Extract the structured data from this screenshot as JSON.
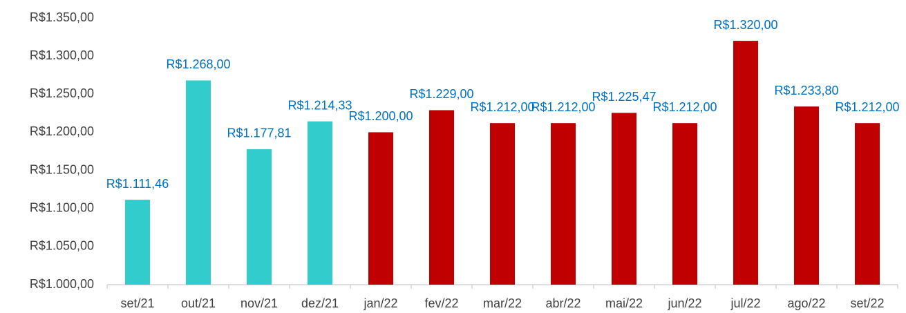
{
  "chart_data": {
    "type": "bar",
    "categories": [
      "set/21",
      "out/21",
      "nov/21",
      "dez/21",
      "jan/22",
      "fev/22",
      "mar/22",
      "abr/22",
      "mai/22",
      "jun/22",
      "jul/22",
      "ago/22",
      "set/22"
    ],
    "values": [
      1111.46,
      1268,
      1177.81,
      1214.33,
      1200,
      1229,
      1212,
      1212,
      1225.47,
      1212,
      1320,
      1233.8,
      1212
    ],
    "value_labels": [
      "R$1.111,46",
      "R$1.268,00",
      "R$1.177,81",
      "R$1.214,33",
      "R$1.200,00",
      "R$1.229,00",
      "R$1.212,00",
      "R$1.212,00",
      "R$1.225,47",
      "R$1.212,00",
      "R$1.320,00",
      "R$1.233,80",
      "R$1.212,00"
    ],
    "colors": [
      "#33cccc",
      "#33cccc",
      "#33cccc",
      "#33cccc",
      "#c00000",
      "#c00000",
      "#c00000",
      "#c00000",
      "#c00000",
      "#c00000",
      "#c00000",
      "#c00000",
      "#c00000"
    ],
    "ylim": [
      1000,
      1350
    ],
    "yticks": [
      {
        "value": 1000,
        "label": "R$1.000,00"
      },
      {
        "value": 1050,
        "label": "R$1.050,00"
      },
      {
        "value": 1100,
        "label": "R$1.100,00"
      },
      {
        "value": 1150,
        "label": "R$1.150,00"
      },
      {
        "value": 1200,
        "label": "R$1.200,00"
      },
      {
        "value": 1250,
        "label": "R$1.250,00"
      },
      {
        "value": 1300,
        "label": "R$1.300,00"
      },
      {
        "value": 1350,
        "label": "R$1.350,00"
      }
    ],
    "grid": false
  }
}
